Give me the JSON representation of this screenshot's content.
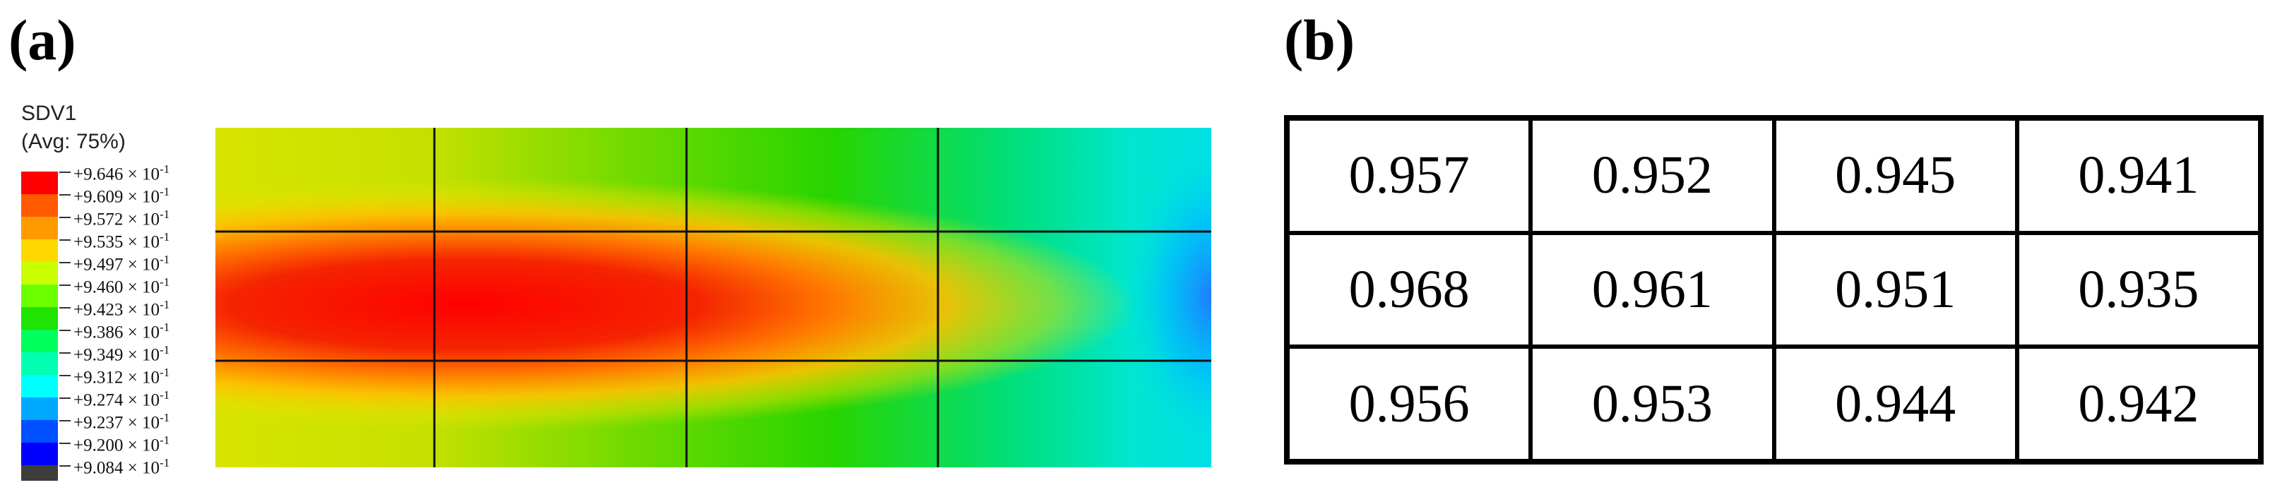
{
  "panel_a": {
    "label": "(a)",
    "legend": {
      "variable": "SDV1",
      "averaging": "(Avg: 75%)",
      "levels": [
        {
          "mantissa": "+9.646",
          "exp": "-1",
          "color": "#ff0000"
        },
        {
          "mantissa": "+9.609",
          "exp": "-1",
          "color": "#ff5a00"
        },
        {
          "mantissa": "+9.572",
          "exp": "-1",
          "color": "#ff9a00"
        },
        {
          "mantissa": "+9.535",
          "exp": "-1",
          "color": "#ffd800"
        },
        {
          "mantissa": "+9.497",
          "exp": "-1",
          "color": "#c9ff00"
        },
        {
          "mantissa": "+9.460",
          "exp": "-1",
          "color": "#6cff00"
        },
        {
          "mantissa": "+9.423",
          "exp": "-1",
          "color": "#1fe300"
        },
        {
          "mantissa": "+9.386",
          "exp": "-1",
          "color": "#00ff5a"
        },
        {
          "mantissa": "+9.349",
          "exp": "-1",
          "color": "#00ffb0"
        },
        {
          "mantissa": "+9.312",
          "exp": "-1",
          "color": "#00ffff"
        },
        {
          "mantissa": "+9.274",
          "exp": "-1",
          "color": "#00a8ff"
        },
        {
          "mantissa": "+9.237",
          "exp": "-1",
          "color": "#0050ff"
        },
        {
          "mantissa": "+9.200",
          "exp": "-1",
          "color": "#0000ff"
        },
        {
          "mantissa": "+9.084",
          "exp": "-1",
          "color": "#3d3d3d"
        }
      ],
      "times_symbol": "×",
      "base": "10"
    },
    "grid": {
      "rows": 3,
      "cols": 4
    }
  },
  "panel_b": {
    "label": "(b)",
    "table": [
      [
        "0.957",
        "0.952",
        "0.945",
        "0.941"
      ],
      [
        "0.968",
        "0.961",
        "0.951",
        "0.935"
      ],
      [
        "0.956",
        "0.953",
        "0.944",
        "0.942"
      ]
    ]
  }
}
